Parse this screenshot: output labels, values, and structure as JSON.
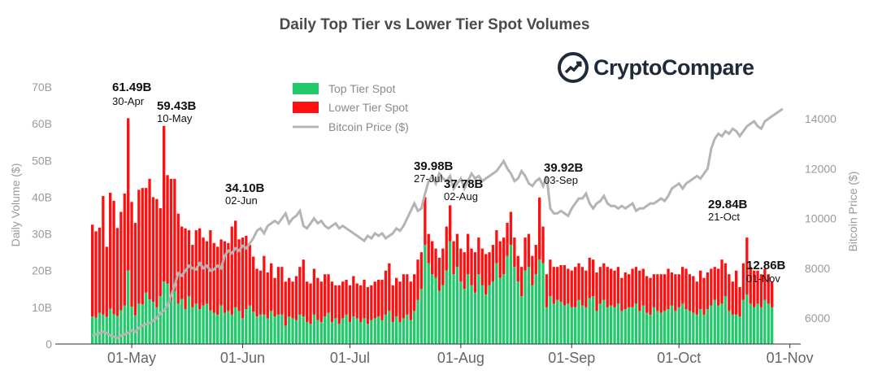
{
  "title": "Daily Top Tier vs Lower Tier Spot Volumes",
  "logo_text": "CryptoCompare",
  "colors": {
    "top_tier": "#21c96b",
    "lower_tier": "#ff0f0f",
    "price": "#b4b4b4"
  },
  "chart_data": {
    "type": "bar",
    "stacked": true,
    "title": "Daily Top Tier vs Lower Tier Spot Volumes",
    "ylabel": "Daily Volume ($)",
    "y2label": "Bitcoin Price ($)",
    "ylim": [
      0,
      70
    ],
    "y2lim": [
      5000,
      15000
    ],
    "y_ticks": [
      "0",
      "10B",
      "20B",
      "30B",
      "40B",
      "50B",
      "60B",
      "70B"
    ],
    "y2_ticks": [
      "6000",
      "8000",
      "10000",
      "12000",
      "14000"
    ],
    "x_ticks": [
      "01-May",
      "01-Jun",
      "01-Jul",
      "01-Aug",
      "01-Sep",
      "01-Oct",
      "01-Nov"
    ],
    "start_date": "2019-04-20",
    "legend": {
      "position": "top-center",
      "entries": [
        "Top Tier Spot",
        "Lower Tier Spot",
        "Bitcoin Price ($)"
      ]
    },
    "series": [
      {
        "name": "Top Tier Spot",
        "unit": "B",
        "values": [
          7.5,
          7.2,
          8.5,
          8.0,
          7.4,
          9.6,
          8.1,
          7.6,
          9.2,
          10.5,
          20.0,
          10.2,
          7.8,
          11.0,
          10.8,
          14.0,
          12.2,
          11.5,
          10.0,
          13.0,
          17.0,
          16.5,
          12.0,
          14.5,
          11.0,
          12.3,
          9.5,
          13.0,
          10.0,
          11.0,
          9.5,
          10.5,
          11.0,
          9.2,
          8.5,
          8.0,
          10.5,
          8.5,
          9.0,
          8.0,
          10.0,
          9.0,
          7.0,
          9.5,
          10.5,
          8.8,
          7.5,
          8.0,
          8.0,
          7.0,
          9.0,
          7.5,
          8.0,
          8.0,
          5.0,
          7.5,
          7.0,
          6.5,
          8.0,
          7.5,
          6.0,
          5.5,
          8.0,
          6.5,
          6.0,
          7.5,
          8.5,
          6.0,
          7.0,
          5.5,
          7.0,
          8.0,
          6.0,
          7.5,
          7.0,
          6.0,
          7.0,
          5.5,
          6.5,
          7.0,
          7.5,
          6.5,
          8.0,
          9.0,
          6.0,
          7.5,
          6.0,
          7.0,
          8.0,
          6.5,
          9.0,
          12.0,
          15.0,
          27.0,
          22.0,
          19.0,
          18.0,
          14.5,
          16.0,
          20.0,
          28.0,
          19.0,
          21.0,
          17.0,
          15.0,
          19.0,
          16.0,
          14.0,
          19.0,
          16.0,
          13.5,
          16.0,
          17.0,
          22.0,
          18.0,
          19.0,
          24.0,
          27.0,
          21.0,
          17.0,
          13.0,
          20.0,
          21.0,
          16.0,
          19.0,
          23.0,
          22.0,
          10.0,
          13.0,
          11.0,
          12.0,
          11.5,
          10.5,
          11.0,
          10.0,
          10.0,
          12.0,
          10.5,
          10.0,
          12.5,
          13.0,
          9.0,
          11.0,
          12.0,
          10.0,
          10.5,
          10.0,
          11.0,
          9.0,
          9.5,
          10.0,
          10.0,
          11.0,
          9.0,
          10.5,
          8.5,
          8.0,
          10.0,
          9.0,
          8.5,
          9.0,
          9.5,
          10.5,
          9.0,
          10.0,
          11.0,
          9.5,
          9.0,
          8.5,
          8.0,
          9.5,
          8.0,
          9.5,
          10.5,
          12.0,
          10.5,
          11.0,
          13.0,
          9.0,
          8.0,
          8.0,
          7.5,
          12.0,
          13.5,
          11.0,
          10.0,
          11.0,
          10.0,
          12.0,
          11.0,
          10.0
        ]
      },
      {
        "name": "Lower Tier Spot",
        "unit": "B",
        "values": [
          25.0,
          23.5,
          23.2,
          32.3,
          19.1,
          31.6,
          30.9,
          24.0,
          26.8,
          30.5,
          41.5,
          28.5,
          25.2,
          31.0,
          31.7,
          28.5,
          32.8,
          28.5,
          29.5,
          24.0,
          42.4,
          29.5,
          33.0,
          30.5,
          24.5,
          19.7,
          22.0,
          18.0,
          17.0,
          20.0,
          22.0,
          18.5,
          17.0,
          21.8,
          19.0,
          18.5,
          18.0,
          19.5,
          18.5,
          24.0,
          23.6,
          19.5,
          22.0,
          20.0,
          16.5,
          15.0,
          13.0,
          12.0,
          16.0,
          12.5,
          13.0,
          10.5,
          13.0,
          13.0,
          12.0,
          10.5,
          10.0,
          12.0,
          13.0,
          15.5,
          11.0,
          11.0,
          12.5,
          11.5,
          11.0,
          11.5,
          10.5,
          11.0,
          9.0,
          10.5,
          10.0,
          9.5,
          10.0,
          11.0,
          9.5,
          10.0,
          10.5,
          10.0,
          9.5,
          10.0,
          10.0,
          11.0,
          12.0,
          13.0,
          10.0,
          10.5,
          11.0,
          12.0,
          11.0,
          10.5,
          10.0,
          11.0,
          10.0,
          13.0,
          8.0,
          9.0,
          8.0,
          9.0,
          10.0,
          12.0,
          9.78,
          9.0,
          9.0,
          9.0,
          10.0,
          11.0,
          10.0,
          11.0,
          10.0,
          10.0,
          11.0,
          9.0,
          10.0,
          9.0,
          10.0,
          10.0,
          9.0,
          9.0,
          8.0,
          7.0,
          8.0,
          9.0,
          9.0,
          8.0,
          8.0,
          16.92,
          10.0,
          9.0,
          10.0,
          10.0,
          9.0,
          10.0,
          11.0,
          9.5,
          10.0,
          11.0,
          10.0,
          10.5,
          10.0,
          11.0,
          10.0,
          10.5,
          10.0,
          10.0,
          11.0,
          10.0,
          10.0,
          10.0,
          9.0,
          10.0,
          9.0,
          10.5,
          10.0,
          11.0,
          10.0,
          10.0,
          10.0,
          9.0,
          10.0,
          10.5,
          10.0,
          11.0,
          9.0,
          10.0,
          9.0,
          10.0,
          11.0,
          10.0,
          10.0,
          9.0,
          10.5,
          10.0,
          10.0,
          10.0,
          9.0,
          10.0,
          12.0,
          9.0,
          10.0,
          9.0,
          12.0,
          8.0,
          10.0,
          15.5,
          10.0,
          10.0,
          9.0,
          9.0,
          8.5,
          8.0,
          7.0,
          5.0
        ]
      },
      {
        "name": "Bitcoin Price ($)",
        "unit": "$",
        "values": [
          5300,
          5350,
          5400,
          5450,
          5400,
          5300,
          5250,
          5200,
          5300,
          5350,
          5400,
          5500,
          5450,
          5600,
          5700,
          5750,
          5800,
          5900,
          6000,
          6200,
          6300,
          6500,
          6900,
          7300,
          7800,
          7700,
          7900,
          8100,
          8000,
          7950,
          8200,
          8000,
          8100,
          7900,
          7950,
          8100,
          8000,
          8500,
          8700,
          8600,
          8800,
          8700,
          8900,
          8800,
          9000,
          9200,
          9500,
          9600,
          9400,
          9700,
          9800,
          9900,
          9800,
          10000,
          10200,
          9800,
          10000,
          10100,
          10300,
          9700,
          9600,
          9800,
          10000,
          9800,
          9900,
          9700,
          9600,
          9700,
          9800,
          9600,
          9700,
          9600,
          9500,
          9400,
          9300,
          9200,
          9100,
          9300,
          9200,
          9400,
          9300,
          9400,
          9200,
          9300,
          9400,
          9600,
          9500,
          9700,
          10000,
          10300,
          10600,
          10300,
          10400,
          11000,
          11500,
          11700,
          11400,
          11800,
          11600,
          11500,
          11700,
          11200,
          11400,
          11600,
          11200,
          11500,
          11800,
          11600,
          11700,
          11500,
          11600,
          11700,
          11800,
          11900,
          12100,
          12300,
          12000,
          11800,
          11500,
          11600,
          11900,
          11700,
          11400,
          11300,
          11500,
          11600,
          11300,
          11700,
          10400,
          10200,
          10200,
          10300,
          10200,
          10100,
          10400,
          10600,
          10800,
          10800,
          11000,
          10600,
          10400,
          10600,
          10700,
          10900,
          10600,
          10500,
          10500,
          10400,
          10500,
          10400,
          10500,
          10600,
          10300,
          10400,
          10400,
          10500,
          10600,
          10600,
          10700,
          10800,
          10700,
          10900,
          11200,
          11300,
          11400,
          11200,
          11400,
          11500,
          11600,
          11700,
          11600,
          11800,
          12000,
          12800,
          13200,
          13400,
          13300,
          13500,
          13400,
          13600,
          13500,
          13300,
          13500,
          13700,
          13800,
          13900,
          13700,
          13600,
          13900,
          14000,
          14100,
          14200,
          14300,
          14400
        ]
      }
    ],
    "annotations": [
      {
        "value": "61.49B",
        "date": "30-Apr"
      },
      {
        "value": "59.43B",
        "date": "10-May"
      },
      {
        "value": "34.10B",
        "date": "02-Jun"
      },
      {
        "value": "39.98B",
        "date": "27-Jul"
      },
      {
        "value": "37.78B",
        "date": "02-Aug"
      },
      {
        "value": "39.92B",
        "date": "03-Sep"
      },
      {
        "value": "29.84B",
        "date": "21-Oct"
      },
      {
        "value": "12.86B",
        "date": "01-Nov"
      }
    ]
  }
}
